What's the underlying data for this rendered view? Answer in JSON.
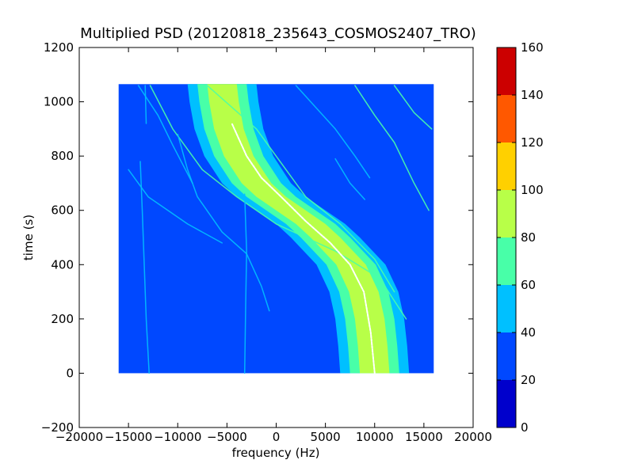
{
  "chart_data": {
    "type": "heatmap",
    "title": "Multiplied PSD (20120818_235643_COSMOS2407_TRO)",
    "xlabel": "frequency (Hz)",
    "ylabel": "time (s)",
    "xlim": [
      -20000,
      20000
    ],
    "ylim": [
      -200,
      1200
    ],
    "xticks": [
      -20000,
      -15000,
      -10000,
      -5000,
      0,
      5000,
      10000,
      15000,
      20000
    ],
    "xtick_labels": [
      "−20000",
      "−15000",
      "−10000",
      "−5000",
      "0",
      "5000",
      "10000",
      "15000",
      "20000"
    ],
    "yticks": [
      -200,
      0,
      200,
      400,
      600,
      800,
      1000,
      1200
    ],
    "ytick_labels": [
      "−200",
      "0",
      "200",
      "400",
      "600",
      "800",
      "1000",
      "1200"
    ],
    "data_extent": {
      "x": [
        -16000,
        16000
      ],
      "y": [
        0,
        1065
      ]
    },
    "background_level": 30,
    "colorbar": {
      "min": 0,
      "max": 160,
      "ticks": [
        0,
        20,
        40,
        60,
        80,
        100,
        120,
        140,
        160
      ],
      "tick_labels": [
        "0",
        "20",
        "40",
        "60",
        "80",
        "100",
        "120",
        "140",
        "160"
      ],
      "colors": [
        "#0000cc",
        "#0048ff",
        "#00c0ff",
        "#48ffa8",
        "#b8ff48",
        "#ffd000",
        "#ff5800",
        "#cc0000"
      ]
    },
    "main_signal": {
      "description_free": true,
      "center_points": [
        {
          "t": 0,
          "f": 10000
        },
        {
          "t": 100,
          "f": 9800
        },
        {
          "t": 200,
          "f": 9500
        },
        {
          "t": 300,
          "f": 8900
        },
        {
          "t": 400,
          "f": 7600
        },
        {
          "t": 500,
          "f": 5000
        },
        {
          "t": 550,
          "f": 3500
        },
        {
          "t": 600,
          "f": 1500
        },
        {
          "t": 650,
          "f": -500
        },
        {
          "t": 700,
          "f": -2000
        },
        {
          "t": 800,
          "f": -3800
        },
        {
          "t": 900,
          "f": -4800
        },
        {
          "t": 1000,
          "f": -5300
        },
        {
          "t": 1065,
          "f": -5500
        }
      ],
      "bands": [
        {
          "level": 50,
          "half_width": 3500
        },
        {
          "level": 70,
          "half_width": 2500
        },
        {
          "level": 90,
          "half_width": 1500
        }
      ]
    },
    "secondary_traces": [
      {
        "level": 60,
        "points": [
          {
            "t": 1060,
            "f": -12800
          },
          {
            "t": 900,
            "f": -10500
          },
          {
            "t": 750,
            "f": -7500
          },
          {
            "t": 650,
            "f": -4000
          },
          {
            "t": 550,
            "f": 0
          },
          {
            "t": 450,
            "f": 6000
          },
          {
            "t": 350,
            "f": 10500
          },
          {
            "t": 200,
            "f": 13200
          }
        ]
      },
      {
        "level": 60,
        "points": [
          {
            "t": 1060,
            "f": -7000
          },
          {
            "t": 900,
            "f": -2000
          },
          {
            "t": 750,
            "f": 1000
          },
          {
            "t": 650,
            "f": 3000
          },
          {
            "t": 550,
            "f": 6500
          },
          {
            "t": 420,
            "f": 10000
          },
          {
            "t": 300,
            "f": 12000
          }
        ]
      },
      {
        "level": 60,
        "points": [
          {
            "t": 1060,
            "f": 8000
          },
          {
            "t": 950,
            "f": 10000
          },
          {
            "t": 850,
            "f": 12000
          },
          {
            "t": 700,
            "f": 14000
          },
          {
            "t": 600,
            "f": 15500
          }
        ]
      },
      {
        "level": 60,
        "points": [
          {
            "t": 1060,
            "f": 12000
          },
          {
            "t": 960,
            "f": 14000
          },
          {
            "t": 900,
            "f": 15800
          }
        ]
      },
      {
        "level": 50,
        "points": [
          {
            "t": 1060,
            "f": 2000
          },
          {
            "t": 900,
            "f": 6000
          },
          {
            "t": 800,
            "f": 8000
          },
          {
            "t": 720,
            "f": 9500
          }
        ]
      },
      {
        "level": 50,
        "points": [
          {
            "t": 880,
            "f": -10000
          },
          {
            "t": 750,
            "f": -9000
          },
          {
            "t": 650,
            "f": -8000
          },
          {
            "t": 520,
            "f": -5500
          },
          {
            "t": 440,
            "f": -3000
          },
          {
            "t": 320,
            "f": -1500
          },
          {
            "t": 230,
            "f": -700
          }
        ]
      },
      {
        "level": 50,
        "points": [
          {
            "t": 1060,
            "f": -14000
          },
          {
            "t": 950,
            "f": -12000
          },
          {
            "t": 840,
            "f": -10500
          },
          {
            "t": 700,
            "f": -8500
          }
        ]
      },
      {
        "level": 50,
        "points": [
          {
            "t": 750,
            "f": -15000
          },
          {
            "t": 650,
            "f": -13000
          },
          {
            "t": 550,
            "f": -9000
          },
          {
            "t": 480,
            "f": -5500
          }
        ]
      },
      {
        "level": 50,
        "points": [
          {
            "t": 790,
            "f": 6000
          },
          {
            "t": 700,
            "f": 7500
          },
          {
            "t": 640,
            "f": 9000
          }
        ]
      },
      {
        "level": 50,
        "points": [
          {
            "t": 780,
            "f": -13800
          },
          {
            "t": 600,
            "f": -13600
          },
          {
            "t": 400,
            "f": -13400
          },
          {
            "t": 200,
            "f": -13200
          },
          {
            "t": 0,
            "f": -12900
          }
        ]
      },
      {
        "level": 50,
        "points": [
          {
            "t": 1060,
            "f": -13300
          },
          {
            "t": 920,
            "f": -13200
          }
        ]
      },
      {
        "level": 45,
        "points": [
          {
            "t": 660,
            "f": -3200
          },
          {
            "t": 450,
            "f": -3000
          },
          {
            "t": 250,
            "f": -3100
          },
          {
            "t": 0,
            "f": -3200
          }
        ]
      }
    ],
    "white_trace": [
      {
        "t": 0,
        "f": 10000
      },
      {
        "t": 150,
        "f": 9600
      },
      {
        "t": 300,
        "f": 8900
      },
      {
        "t": 400,
        "f": 7500
      },
      {
        "t": 480,
        "f": 5500
      },
      {
        "t": 560,
        "f": 3000
      },
      {
        "t": 650,
        "f": 500
      },
      {
        "t": 720,
        "f": -1500
      },
      {
        "t": 800,
        "f": -3000
      },
      {
        "t": 880,
        "f": -4000
      },
      {
        "t": 920,
        "f": -4500
      }
    ]
  }
}
